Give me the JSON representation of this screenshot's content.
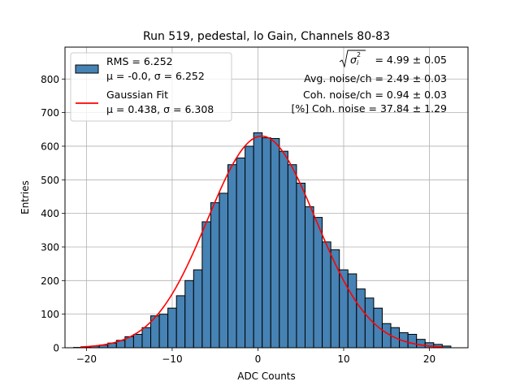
{
  "chart_data": {
    "type": "bar",
    "title": "Run 519, pedestal, lo Gain, Channels 80-83",
    "xlabel": "ADC Counts",
    "ylabel": "Entries",
    "xlim": [
      -22.5,
      24.5
    ],
    "ylim": [
      0,
      895
    ],
    "x_ticks": [
      -20,
      -10,
      0,
      10,
      20
    ],
    "y_ticks": [
      0,
      100,
      200,
      300,
      400,
      500,
      600,
      700,
      800
    ],
    "grid": true,
    "bin_width": 1,
    "bin_centers": [
      -21,
      -20,
      -19,
      -18,
      -17,
      -16,
      -15,
      -14,
      -13,
      -12,
      -11,
      -10,
      -9,
      -8,
      -7,
      -6,
      -5,
      -4,
      -3,
      -2,
      -1,
      0,
      1,
      2,
      3,
      4,
      5,
      6,
      7,
      8,
      9,
      10,
      11,
      12,
      13,
      14,
      15,
      16,
      17,
      18,
      19,
      20,
      21,
      22
    ],
    "values": [
      1,
      2,
      5,
      8,
      14,
      22,
      33,
      40,
      60,
      95,
      100,
      118,
      155,
      200,
      232,
      375,
      432,
      460,
      545,
      565,
      600,
      640,
      625,
      623,
      585,
      545,
      490,
      420,
      388,
      315,
      292,
      232,
      220,
      175,
      148,
      118,
      72,
      60,
      45,
      40,
      25,
      15,
      10,
      5
    ],
    "bar_color": "#4682b4",
    "edge_color": "#000000",
    "series": [
      {
        "name": "Gaussian Fit",
        "type": "line",
        "color": "#ff0000",
        "amplitude": 630,
        "mu": 0.438,
        "sigma": 6.308,
        "x_range": [
          -20.7,
          21.6
        ]
      }
    ],
    "legend": {
      "placement": "top-left",
      "entries": [
        {
          "line1": "RMS = 6.252",
          "line2": "μ = -0.0, σ = 6.252",
          "marker": "patch",
          "color": "#4682b4"
        },
        {
          "line1": "Gaussian Fit",
          "line2": "μ = 0.438, σ = 6.308",
          "marker": "line",
          "color": "#ff0000"
        }
      ]
    },
    "annotations": {
      "sigma_total": "= 4.99 ± 0.05",
      "avg_noise": "Avg. noise/ch = 2.49 ± 0.03",
      "coh_noise": "Coh. noise/ch = 0.94 ± 0.03",
      "pct_coh": "[%] Coh. noise = 37.84 ± 1.29"
    }
  }
}
